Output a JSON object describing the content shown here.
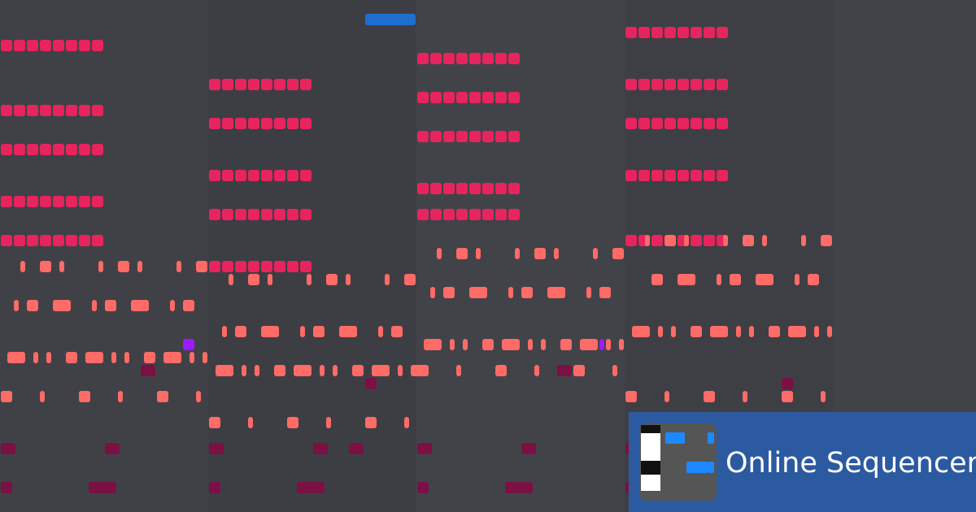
{
  "brand": {
    "name": "Online Sequencer"
  }
}
